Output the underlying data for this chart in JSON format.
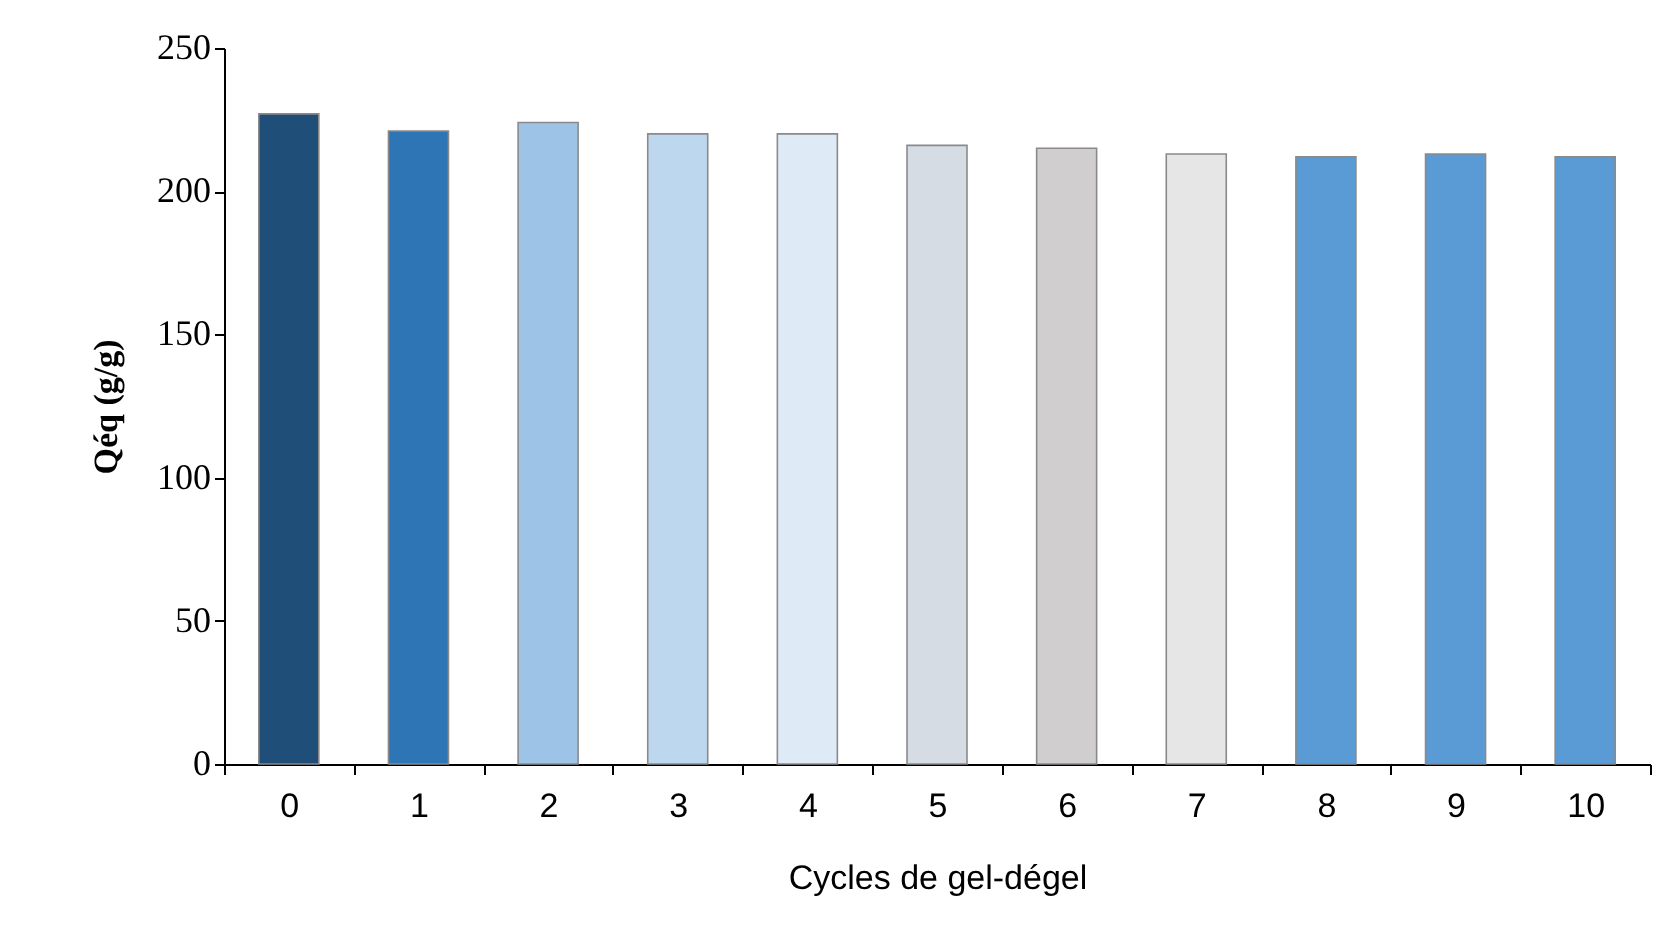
{
  "chart_data": {
    "type": "bar",
    "xlabel": "Cycles de gel-dégel",
    "ylabel": "Qéq (g/g)",
    "categories": [
      "0",
      "1",
      "2",
      "3",
      "4",
      "5",
      "6",
      "7",
      "8",
      "9",
      "10"
    ],
    "values": [
      227,
      221,
      224,
      220,
      220,
      216,
      215,
      213,
      212,
      213,
      212
    ],
    "colors": [
      "#1f4e79",
      "#2e75b6",
      "#9dc3e6",
      "#bdd7ee",
      "#deebf7",
      "#d6dce4",
      "#d0cece",
      "#e7e6e6",
      "#5b9bd5",
      "#5b9bd5",
      "#5b9bd5"
    ],
    "ylim": [
      0,
      250
    ],
    "yticks": [
      0,
      50,
      100,
      150,
      200,
      250
    ],
    "grid": false,
    "legend": false
  }
}
